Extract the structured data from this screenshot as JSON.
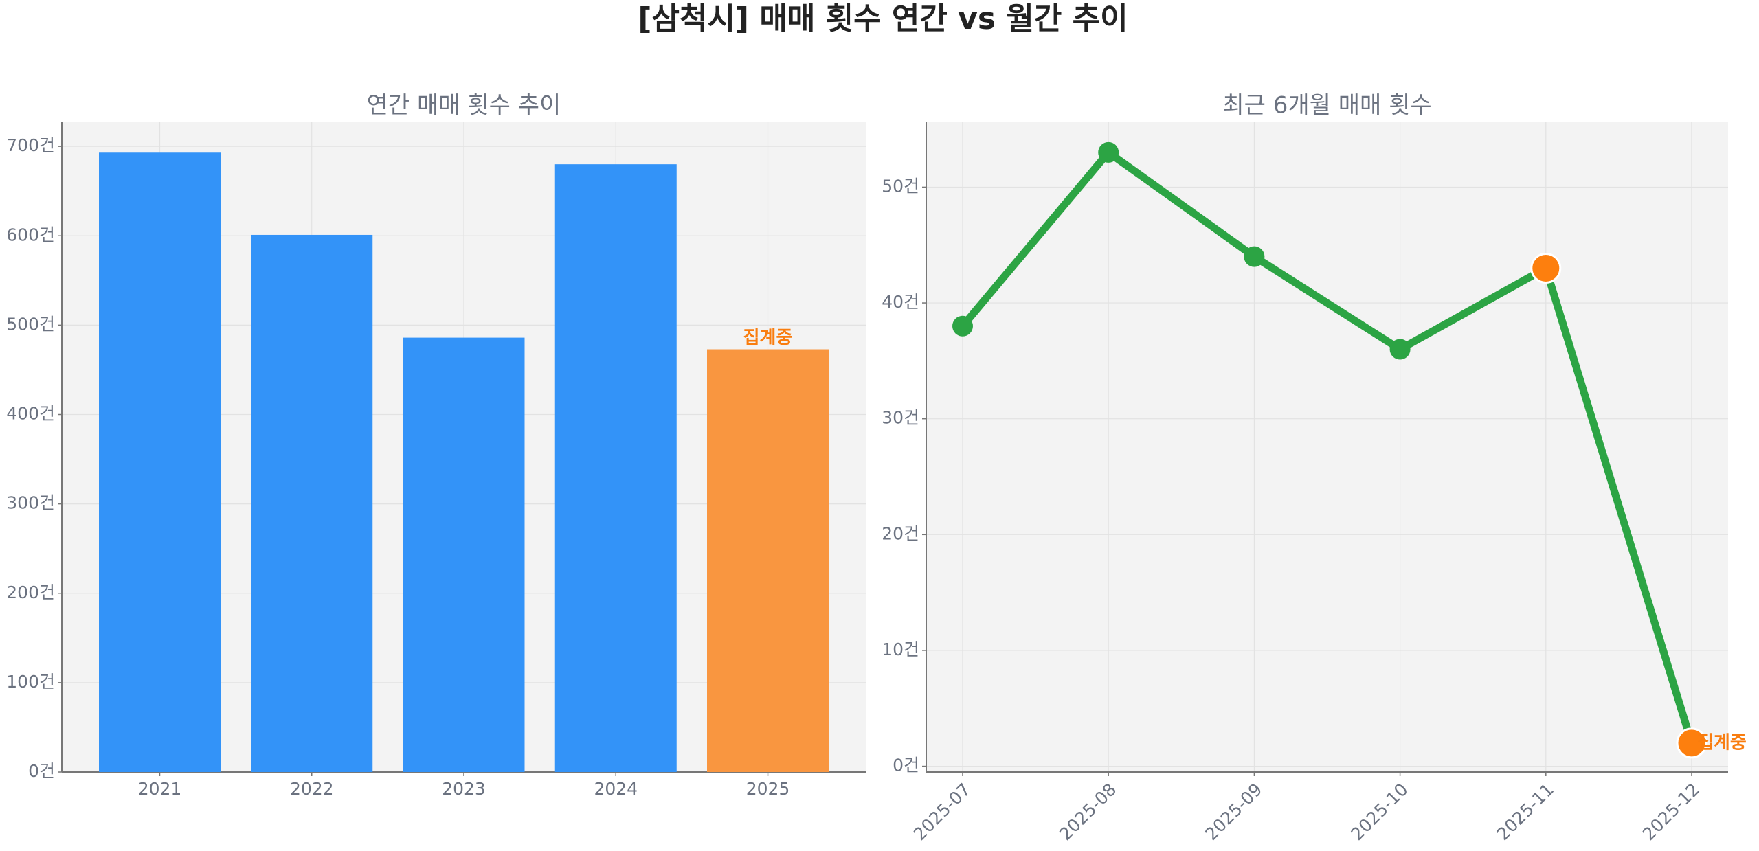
{
  "title": "[삼척시] 매매 횟수 연간 vs 월간 추이",
  "chart_data": [
    {
      "type": "bar",
      "title": "연간 매매 횟수 추이",
      "categories": [
        "2021",
        "2022",
        "2023",
        "2024",
        "2025"
      ],
      "values": [
        693,
        601,
        486,
        680,
        473
      ],
      "colors": [
        "#3393f8",
        "#3393f8",
        "#3393f8",
        "#3393f8",
        "#f99640"
      ],
      "ylim": [
        0,
        727
      ],
      "yticks": [
        {
          "value": 0,
          "label": "0건"
        },
        {
          "value": 100,
          "label": "100건"
        },
        {
          "value": 200,
          "label": "200건"
        },
        {
          "value": 300,
          "label": "300건"
        },
        {
          "value": 400,
          "label": "400건"
        },
        {
          "value": 500,
          "label": "500건"
        },
        {
          "value": 600,
          "label": "600건"
        },
        {
          "value": 700,
          "label": "700건"
        }
      ],
      "grid": true,
      "annotations": [
        {
          "text": "집계중",
          "category": "2025",
          "color": "#f97d0f"
        }
      ]
    },
    {
      "type": "line",
      "title": "최근 6개월 매매 횟수",
      "categories": [
        "2025-07",
        "2025-08",
        "2025-09",
        "2025-10",
        "2025-11",
        "2025-12"
      ],
      "values": [
        38,
        53,
        44,
        36,
        43,
        2
      ],
      "color": "#2ca444",
      "marker_colors": [
        "#2ca444",
        "#2ca444",
        "#2ca444",
        "#2ca444",
        "#fd7f0e",
        "#fd7f0e"
      ],
      "ylim": [
        -0.5,
        55.6
      ],
      "yticks": [
        {
          "value": 0,
          "label": "0건"
        },
        {
          "value": 10,
          "label": "10건"
        },
        {
          "value": 20,
          "label": "20건"
        },
        {
          "value": 30,
          "label": "30건"
        },
        {
          "value": 40,
          "label": "40건"
        },
        {
          "value": 50,
          "label": "50건"
        }
      ],
      "grid": true,
      "annotations": [
        {
          "text": "집계중",
          "category": "2025-12",
          "color": "#f97d0f"
        }
      ]
    }
  ]
}
